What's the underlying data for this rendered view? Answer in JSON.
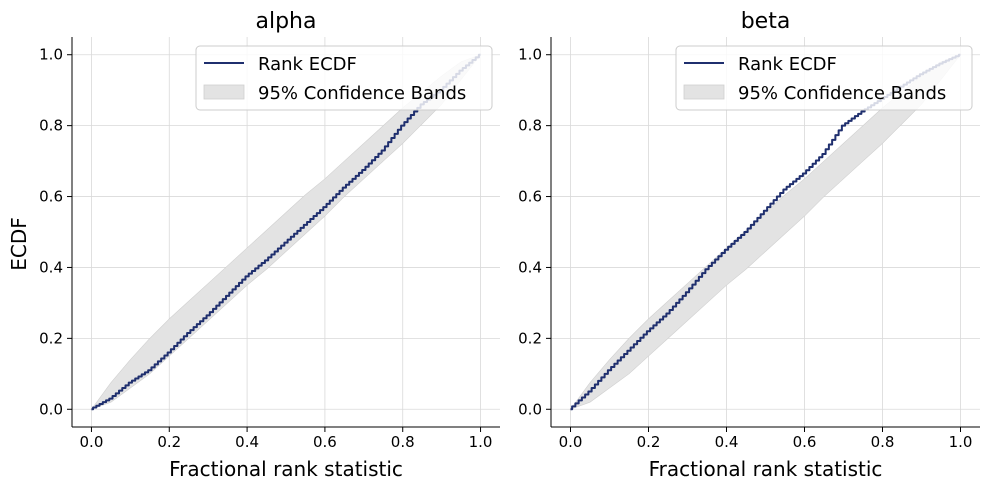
{
  "figure": {
    "ylabel": "ECDF"
  },
  "chart_data": [
    {
      "type": "line",
      "title": "alpha",
      "xlabel": "Fractional rank statistic",
      "ylabel": "ECDF",
      "xlim": [
        -0.05,
        1.05
      ],
      "ylim": [
        -0.05,
        1.05
      ],
      "xticks": [
        0.0,
        0.2,
        0.4,
        0.6,
        0.8,
        1.0
      ],
      "xtick_labels": [
        "0.0",
        "0.2",
        "0.4",
        "0.6",
        "0.8",
        "1.0"
      ],
      "yticks": [
        0.0,
        0.2,
        0.4,
        0.6,
        0.8,
        1.0
      ],
      "ytick_labels": [
        "0.0",
        "0.2",
        "0.4",
        "0.6",
        "0.8",
        "1.0"
      ],
      "grid": true,
      "legend": {
        "placement": "upper-right",
        "entries": [
          "Rank ECDF",
          "95% Confidence Bands"
        ]
      },
      "series": [
        {
          "name": "Rank ECDF",
          "kind": "line",
          "color": "#1f2f6e",
          "x": [
            0.0,
            0.05,
            0.1,
            0.15,
            0.2,
            0.25,
            0.3,
            0.35,
            0.4,
            0.45,
            0.5,
            0.55,
            0.6,
            0.65,
            0.7,
            0.75,
            0.8,
            0.85,
            0.9,
            0.95,
            1.0
          ],
          "y": [
            0.0,
            0.03,
            0.075,
            0.11,
            0.16,
            0.215,
            0.265,
            0.32,
            0.375,
            0.42,
            0.47,
            0.52,
            0.57,
            0.625,
            0.675,
            0.73,
            0.8,
            0.86,
            0.9,
            0.955,
            1.0
          ]
        },
        {
          "name": "95% Confidence Bands",
          "kind": "band",
          "color": "#e3e3e3",
          "x": [
            0.0,
            0.05,
            0.1,
            0.15,
            0.2,
            0.25,
            0.3,
            0.35,
            0.4,
            0.45,
            0.5,
            0.55,
            0.6,
            0.65,
            0.7,
            0.75,
            0.8,
            0.85,
            0.9,
            0.95,
            1.0
          ],
          "lower": [
            0.0,
            0.02,
            0.06,
            0.1,
            0.15,
            0.2,
            0.25,
            0.3,
            0.35,
            0.395,
            0.445,
            0.495,
            0.545,
            0.6,
            0.65,
            0.7,
            0.75,
            0.805,
            0.86,
            0.93,
            1.0
          ],
          "upper": [
            0.0,
            0.075,
            0.14,
            0.2,
            0.255,
            0.305,
            0.355,
            0.405,
            0.455,
            0.505,
            0.555,
            0.605,
            0.65,
            0.7,
            0.75,
            0.8,
            0.85,
            0.895,
            0.94,
            0.98,
            1.0
          ]
        }
      ]
    },
    {
      "type": "line",
      "title": "beta",
      "xlabel": "Fractional rank statistic",
      "ylabel": "",
      "xlim": [
        -0.05,
        1.05
      ],
      "ylim": [
        -0.05,
        1.05
      ],
      "xticks": [
        0.0,
        0.2,
        0.4,
        0.6,
        0.8,
        1.0
      ],
      "xtick_labels": [
        "0.0",
        "0.2",
        "0.4",
        "0.6",
        "0.8",
        "1.0"
      ],
      "yticks": [
        0.0,
        0.2,
        0.4,
        0.6,
        0.8,
        1.0
      ],
      "ytick_labels": [
        "0.0",
        "0.2",
        "0.4",
        "0.6",
        "0.8",
        "1.0"
      ],
      "grid": true,
      "legend": {
        "placement": "upper-right",
        "entries": [
          "Rank ECDF",
          "95% Confidence Bands"
        ]
      },
      "series": [
        {
          "name": "Rank ECDF",
          "kind": "line",
          "color": "#1f2f6e",
          "x": [
            0.0,
            0.05,
            0.1,
            0.15,
            0.2,
            0.25,
            0.3,
            0.35,
            0.4,
            0.45,
            0.5,
            0.55,
            0.6,
            0.65,
            0.7,
            0.75,
            0.8,
            0.85,
            0.9,
            0.95,
            1.0
          ],
          "y": [
            0.0,
            0.05,
            0.11,
            0.165,
            0.22,
            0.27,
            0.33,
            0.395,
            0.45,
            0.5,
            0.56,
            0.62,
            0.665,
            0.72,
            0.8,
            0.84,
            0.875,
            0.91,
            0.945,
            0.975,
            1.0
          ]
        },
        {
          "name": "95% Confidence Bands",
          "kind": "band",
          "color": "#e3e3e3",
          "x": [
            0.0,
            0.05,
            0.1,
            0.15,
            0.2,
            0.25,
            0.3,
            0.35,
            0.4,
            0.45,
            0.5,
            0.55,
            0.6,
            0.65,
            0.7,
            0.75,
            0.8,
            0.85,
            0.9,
            0.95,
            1.0
          ],
          "lower": [
            0.0,
            0.02,
            0.06,
            0.1,
            0.15,
            0.2,
            0.25,
            0.3,
            0.35,
            0.395,
            0.445,
            0.495,
            0.545,
            0.6,
            0.65,
            0.7,
            0.75,
            0.805,
            0.86,
            0.93,
            1.0
          ],
          "upper": [
            0.0,
            0.075,
            0.14,
            0.2,
            0.255,
            0.305,
            0.355,
            0.405,
            0.455,
            0.505,
            0.555,
            0.605,
            0.65,
            0.7,
            0.75,
            0.8,
            0.85,
            0.895,
            0.94,
            0.98,
            1.0
          ]
        }
      ]
    }
  ]
}
